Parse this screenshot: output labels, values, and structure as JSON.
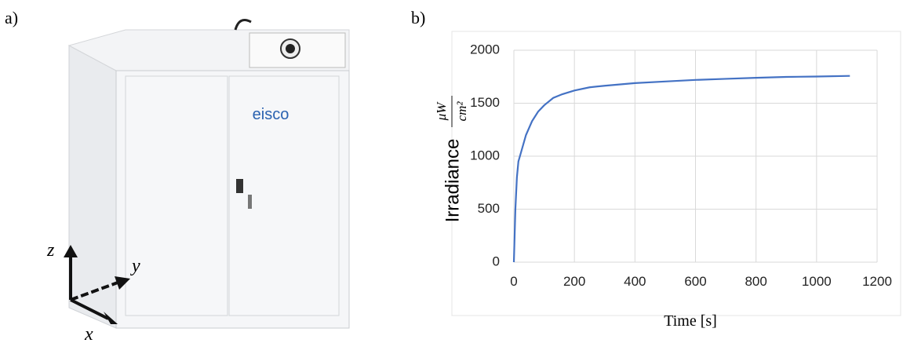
{
  "panel_a": {
    "label": "a)",
    "brand": "eisco",
    "axis_labels": {
      "z": "z",
      "y": "y",
      "x": "x"
    }
  },
  "panel_b": {
    "label": "b)"
  },
  "chart_data": {
    "type": "line",
    "x_label": "Time [s]",
    "y_label": "Irradiance",
    "y_unit": {
      "numerator": "μW",
      "denominator": "cm²"
    },
    "x": [
      0,
      5,
      10,
      15,
      20,
      30,
      40,
      60,
      80,
      100,
      130,
      160,
      200,
      250,
      300,
      400,
      500,
      600,
      700,
      800,
      900,
      1000,
      1110
    ],
    "series": [
      {
        "name": "Irradiance",
        "color": "#4472c4",
        "values": [
          0,
          500,
          800,
          950,
          1000,
          1100,
          1200,
          1330,
          1420,
          1480,
          1550,
          1585,
          1620,
          1650,
          1665,
          1690,
          1705,
          1720,
          1730,
          1740,
          1748,
          1752,
          1758
        ]
      }
    ],
    "xlim": [
      0,
      1200
    ],
    "xticks": [
      0,
      200,
      400,
      600,
      800,
      1000,
      1200
    ],
    "ylim": [
      0,
      2000
    ],
    "yticks": [
      0,
      500,
      1000,
      1500,
      2000
    ],
    "grid": true
  }
}
